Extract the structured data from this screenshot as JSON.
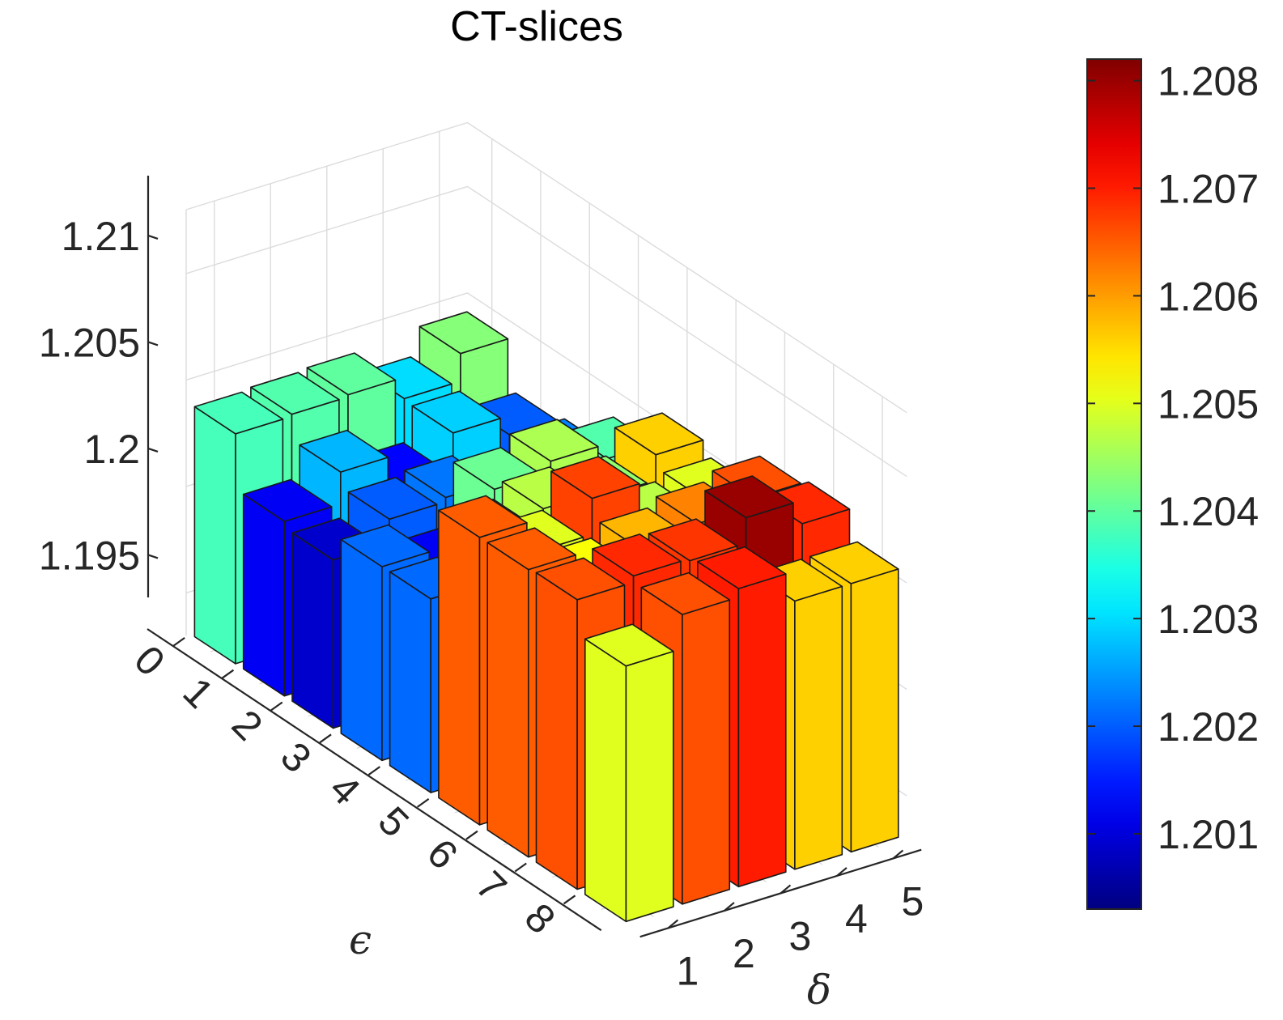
{
  "chart_data": {
    "type": "bar3d",
    "title": "CT-slices",
    "xlabel": "δ",
    "ylabel": "ϵ",
    "zlabel": "",
    "x_categories": [
      "1",
      "2",
      "3",
      "4",
      "5"
    ],
    "y_categories": [
      "0",
      "1",
      "2",
      "3",
      "4",
      "5",
      "6",
      "7",
      "8"
    ],
    "zlim": [
      1.193,
      1.213
    ],
    "z_ticks": [
      "1.195",
      "1.2",
      "1.205",
      "1.21"
    ],
    "z_tick_values": [
      1.195,
      1.2,
      1.205,
      1.21
    ],
    "values": [
      [
        1.2038,
        1.2039,
        1.204,
        1.203,
        1.2043
      ],
      [
        1.2012,
        1.2027,
        1.2013,
        1.2029,
        1.202
      ],
      [
        1.2009,
        1.202,
        1.2022,
        1.2011,
        1.2023
      ],
      [
        1.2021,
        1.2012,
        1.2041,
        1.2046,
        1.2039
      ],
      [
        1.2021,
        1.204,
        1.2047,
        1.2044,
        1.2056
      ],
      [
        1.2065,
        1.205,
        1.2067,
        1.2047,
        1.205
      ],
      [
        1.2065,
        1.2052,
        1.2058,
        1.2062,
        1.2066
      ],
      [
        1.2066,
        1.2069,
        1.2068,
        1.208,
        1.2069
      ],
      [
        1.205,
        1.2066,
        1.207,
        1.2056,
        1.2056
      ]
    ],
    "colorbar": {
      "colormap": "jet",
      "clim": [
        1.2003,
        1.2082
      ],
      "ticks": [
        "1.201",
        "1.202",
        "1.203",
        "1.204",
        "1.205",
        "1.206",
        "1.207",
        "1.208"
      ],
      "tick_values": [
        1.201,
        1.202,
        1.203,
        1.204,
        1.205,
        1.206,
        1.207,
        1.208
      ]
    },
    "grid": true
  }
}
